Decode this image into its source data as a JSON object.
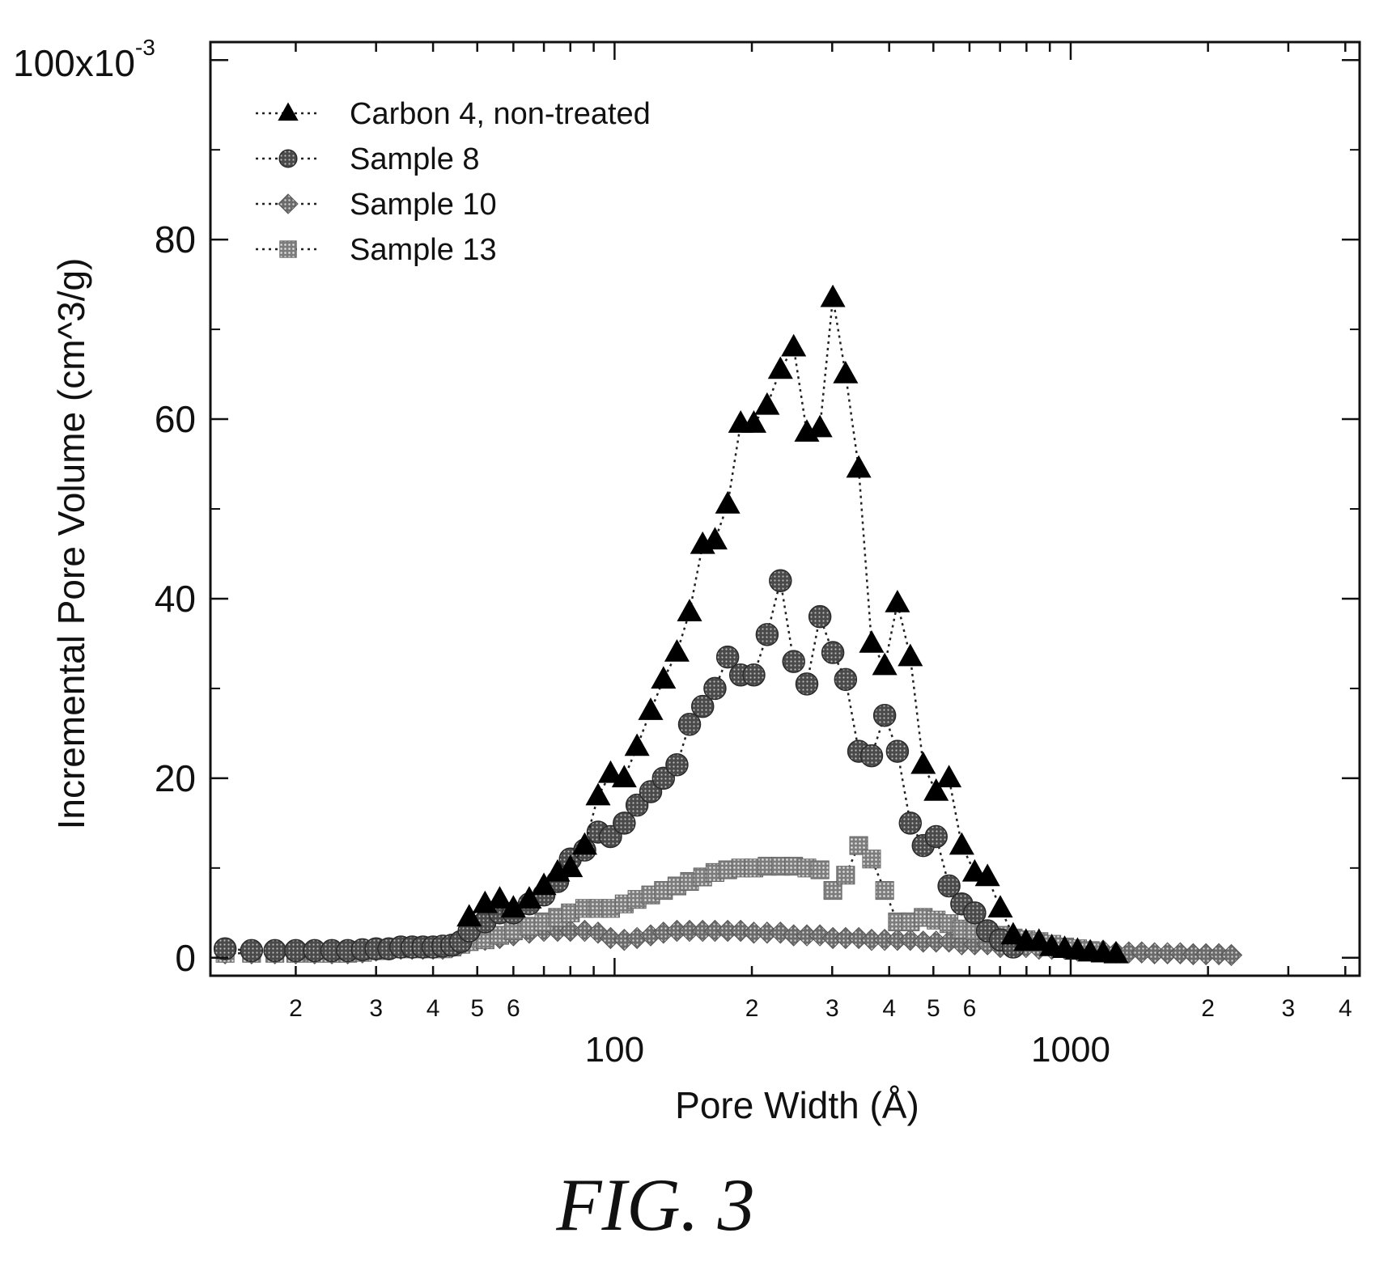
{
  "chart_data": {
    "type": "scatter",
    "x_scale": "log",
    "xlabel": "Pore Width (Å)",
    "ylabel": "Incremental Pore Volume (cm^3/g)",
    "y_top_label": "100x10",
    "y_top_exponent": "-3",
    "xlim": [
      13,
      4300
    ],
    "ylim": [
      -0.002,
      0.102
    ],
    "x_decade_ticks": [
      {
        "value": 100,
        "label": "100"
      },
      {
        "value": 1000,
        "label": "1000"
      }
    ],
    "x_minor_ticks": [
      {
        "value": 20,
        "label": "2"
      },
      {
        "value": 30,
        "label": "3"
      },
      {
        "value": 40,
        "label": "4"
      },
      {
        "value": 50,
        "label": "5"
      },
      {
        "value": 60,
        "label": "6"
      },
      {
        "value": 200,
        "label": "2"
      },
      {
        "value": 300,
        "label": "3"
      },
      {
        "value": 400,
        "label": "4"
      },
      {
        "value": 500,
        "label": "5"
      },
      {
        "value": 600,
        "label": "6"
      },
      {
        "value": 2000,
        "label": "2"
      },
      {
        "value": 3000,
        "label": "3"
      },
      {
        "value": 4000,
        "label": "4"
      }
    ],
    "y_ticks": [
      {
        "value": 0,
        "label": "0"
      },
      {
        "value": 0.02,
        "label": "20"
      },
      {
        "value": 0.04,
        "label": "40"
      },
      {
        "value": 0.06,
        "label": "60"
      },
      {
        "value": 0.08,
        "label": "80"
      }
    ],
    "legend_position": "top-left",
    "series": [
      {
        "name": "Carbon 4, non-treated",
        "marker": "triangle",
        "color": "#000000",
        "x": [
          48,
          52,
          56,
          60,
          65,
          70,
          75,
          80,
          86,
          92,
          98,
          105,
          112,
          120,
          128,
          137,
          146,
          156,
          166,
          177,
          189,
          202,
          216,
          231,
          247,
          264,
          282,
          301,
          321,
          343,
          366,
          391,
          417,
          445,
          475,
          507,
          541,
          577,
          616,
          657,
          701,
          748,
          798,
          852,
          909,
          970,
          1035,
          1104,
          1178,
          1257
        ],
        "y": [
          0.0045,
          0.006,
          0.0065,
          0.0055,
          0.0065,
          0.008,
          0.0095,
          0.01,
          0.0125,
          0.018,
          0.0205,
          0.02,
          0.0235,
          0.0275,
          0.031,
          0.034,
          0.0385,
          0.046,
          0.0465,
          0.0505,
          0.0595,
          0.0595,
          0.0615,
          0.0655,
          0.068,
          0.0585,
          0.059,
          0.0735,
          0.065,
          0.0545,
          0.035,
          0.0325,
          0.0395,
          0.0335,
          0.0215,
          0.0185,
          0.02,
          0.0125,
          0.0095,
          0.009,
          0.0055,
          0.0025,
          0.0018,
          0.0018,
          0.0012,
          0.001,
          0.0008,
          0.0006,
          0.0005,
          0.0004
        ]
      },
      {
        "name": "Sample 8",
        "marker": "circle",
        "color": "#555555",
        "x": [
          14,
          16,
          18,
          20,
          22,
          24,
          26,
          28,
          30,
          32,
          34,
          36,
          38,
          40,
          42,
          44,
          46,
          48,
          52,
          56,
          60,
          65,
          70,
          75,
          80,
          86,
          92,
          98,
          105,
          112,
          120,
          128,
          137,
          146,
          156,
          166,
          177,
          189,
          202,
          216,
          231,
          247,
          264,
          282,
          301,
          321,
          343,
          366,
          391,
          417,
          445,
          475,
          507,
          541,
          577,
          616,
          657,
          701,
          748
        ],
        "y": [
          0.001,
          0.0008,
          0.0008,
          0.0008,
          0.0008,
          0.0008,
          0.0008,
          0.0009,
          0.001,
          0.001,
          0.0012,
          0.0012,
          0.0012,
          0.0012,
          0.0013,
          0.0014,
          0.0018,
          0.003,
          0.004,
          0.005,
          0.005,
          0.006,
          0.007,
          0.0085,
          0.011,
          0.012,
          0.014,
          0.0135,
          0.015,
          0.017,
          0.0185,
          0.02,
          0.0215,
          0.026,
          0.028,
          0.03,
          0.0335,
          0.0315,
          0.0315,
          0.036,
          0.042,
          0.033,
          0.0305,
          0.038,
          0.034,
          0.031,
          0.023,
          0.0225,
          0.027,
          0.023,
          0.015,
          0.0125,
          0.0135,
          0.008,
          0.006,
          0.005,
          0.003,
          0.002,
          0.0012
        ]
      },
      {
        "name": "Sample 10",
        "marker": "diamond",
        "color": "#6e6e6e",
        "x": [
          14,
          16,
          18,
          20,
          22,
          24,
          26,
          28,
          30,
          32,
          34,
          36,
          38,
          40,
          42,
          44,
          46,
          48,
          52,
          56,
          60,
          65,
          70,
          75,
          80,
          86,
          92,
          98,
          105,
          112,
          120,
          128,
          137,
          146,
          156,
          166,
          177,
          189,
          202,
          216,
          231,
          247,
          264,
          282,
          301,
          321,
          343,
          366,
          391,
          417,
          445,
          475,
          507,
          541,
          577,
          616,
          657,
          701,
          748,
          798,
          852,
          909,
          970,
          1035,
          1104,
          1178,
          1257,
          1341,
          1431,
          1527,
          1630,
          1739,
          1856,
          1980,
          2113,
          2250
        ],
        "y": [
          0.0005,
          0.0005,
          0.0005,
          0.0005,
          0.0005,
          0.0005,
          0.0005,
          0.0006,
          0.0008,
          0.001,
          0.001,
          0.001,
          0.001,
          0.001,
          0.001,
          0.0012,
          0.0015,
          0.0018,
          0.002,
          0.0022,
          0.0025,
          0.0028,
          0.003,
          0.003,
          0.003,
          0.003,
          0.0028,
          0.0022,
          0.002,
          0.0022,
          0.0025,
          0.0028,
          0.003,
          0.003,
          0.003,
          0.003,
          0.003,
          0.003,
          0.0028,
          0.0028,
          0.0028,
          0.0025,
          0.0025,
          0.0025,
          0.0022,
          0.0022,
          0.0022,
          0.002,
          0.002,
          0.002,
          0.002,
          0.0018,
          0.0018,
          0.0018,
          0.0015,
          0.0015,
          0.0015,
          0.0012,
          0.0012,
          0.0012,
          0.001,
          0.001,
          0.001,
          0.0008,
          0.0008,
          0.0008,
          0.0006,
          0.0006,
          0.0006,
          0.0005,
          0.0005,
          0.0005,
          0.0004,
          0.0004,
          0.0004,
          0.0003
        ]
      },
      {
        "name": "Sample 13",
        "marker": "square",
        "color": "#7a7a7a",
        "x": [
          14,
          16,
          18,
          20,
          22,
          24,
          26,
          28,
          30,
          32,
          34,
          36,
          38,
          40,
          42,
          44,
          46,
          48,
          52,
          56,
          60,
          65,
          70,
          75,
          80,
          86,
          92,
          98,
          105,
          112,
          120,
          128,
          137,
          146,
          156,
          166,
          177,
          189,
          202,
          216,
          231,
          247,
          264,
          282,
          301,
          321,
          343,
          366,
          391,
          417,
          445,
          475,
          507,
          541,
          577,
          616,
          657,
          701,
          748,
          798,
          852,
          909,
          970,
          1035,
          1104
        ],
        "y": [
          0.0005,
          0.0005,
          0.0005,
          0.0005,
          0.0005,
          0.0005,
          0.0005,
          0.0006,
          0.0008,
          0.001,
          0.001,
          0.001,
          0.001,
          0.001,
          0.001,
          0.0012,
          0.0015,
          0.0018,
          0.002,
          0.0025,
          0.003,
          0.0035,
          0.004,
          0.0045,
          0.005,
          0.0055,
          0.0055,
          0.0055,
          0.006,
          0.0065,
          0.007,
          0.0075,
          0.008,
          0.0085,
          0.009,
          0.0095,
          0.0098,
          0.01,
          0.01,
          0.0102,
          0.0102,
          0.0102,
          0.01,
          0.0098,
          0.0075,
          0.0092,
          0.0125,
          0.011,
          0.0075,
          0.004,
          0.004,
          0.0045,
          0.0042,
          0.0038,
          0.0032,
          0.003,
          0.0028,
          0.0025,
          0.0022,
          0.002,
          0.0018,
          0.0015,
          0.0012,
          0.001,
          0.0008
        ]
      }
    ]
  },
  "caption": "FIG. 3"
}
